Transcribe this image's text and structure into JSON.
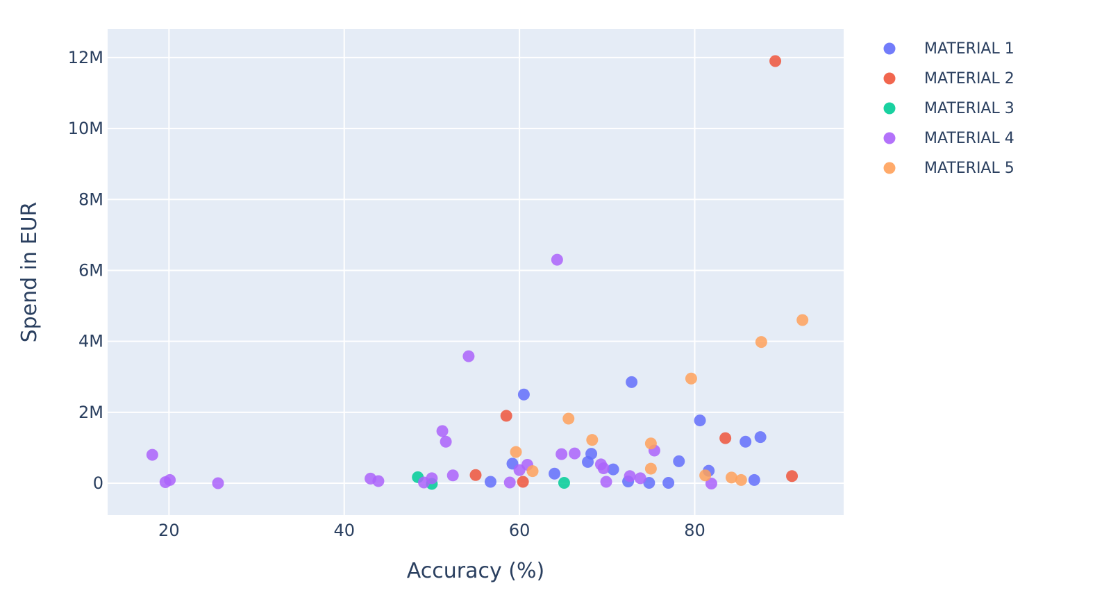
{
  "chart_data": {
    "type": "scatter",
    "xlabel": "Accuracy (%)",
    "ylabel": "Spend in EUR",
    "xlim": [
      13,
      97
    ],
    "ylim": [
      -900000,
      12800000
    ],
    "x_ticks": [
      20,
      40,
      60,
      80
    ],
    "x_tick_labels": [
      "20",
      "40",
      "60",
      "80"
    ],
    "y_ticks": [
      0,
      2000000,
      4000000,
      6000000,
      8000000,
      10000000,
      12000000
    ],
    "y_tick_labels": [
      "0",
      "2M",
      "4M",
      "6M",
      "8M",
      "10M",
      "12M"
    ],
    "grid": true,
    "legend_position": "right",
    "plot_background": "#e5ecf6",
    "series": [
      {
        "name": "MATERIAL 1",
        "color": "#636efa",
        "points": [
          [
            56.7,
            40000
          ],
          [
            59.2,
            550000
          ],
          [
            60.5,
            2500000
          ],
          [
            64.0,
            270000
          ],
          [
            67.8,
            600000
          ],
          [
            68.2,
            830000
          ],
          [
            70.7,
            390000
          ],
          [
            72.4,
            50000
          ],
          [
            72.8,
            2850000
          ],
          [
            74.8,
            10000
          ],
          [
            77.0,
            10000
          ],
          [
            78.2,
            620000
          ],
          [
            80.6,
            1770000
          ],
          [
            81.6,
            350000
          ],
          [
            85.8,
            1170000
          ],
          [
            86.8,
            90000
          ],
          [
            87.5,
            1300000
          ]
        ]
      },
      {
        "name": "MATERIAL 2",
        "color": "#ef553b",
        "points": [
          [
            55.0,
            230000
          ],
          [
            58.5,
            1900000
          ],
          [
            60.4,
            40000
          ],
          [
            83.5,
            1270000
          ],
          [
            89.2,
            11900000
          ],
          [
            91.1,
            200000
          ]
        ]
      },
      {
        "name": "MATERIAL 3",
        "color": "#00cc96",
        "points": [
          [
            48.4,
            170000
          ],
          [
            50.0,
            -20000
          ],
          [
            65.1,
            10000
          ]
        ]
      },
      {
        "name": "MATERIAL 4",
        "color": "#ab63fa",
        "points": [
          [
            18.1,
            800000
          ],
          [
            19.6,
            30000
          ],
          [
            20.1,
            90000
          ],
          [
            25.6,
            0
          ],
          [
            43.0,
            130000
          ],
          [
            43.9,
            60000
          ],
          [
            49.1,
            20000
          ],
          [
            50.0,
            140000
          ],
          [
            51.2,
            1470000
          ],
          [
            51.6,
            1170000
          ],
          [
            52.4,
            220000
          ],
          [
            54.2,
            3580000
          ],
          [
            58.9,
            20000
          ],
          [
            60.0,
            370000
          ],
          [
            60.9,
            520000
          ],
          [
            64.3,
            6300000
          ],
          [
            64.8,
            820000
          ],
          [
            66.3,
            840000
          ],
          [
            69.3,
            530000
          ],
          [
            69.6,
            420000
          ],
          [
            69.9,
            40000
          ],
          [
            72.6,
            200000
          ],
          [
            73.8,
            140000
          ],
          [
            75.4,
            920000
          ],
          [
            81.9,
            -10000
          ]
        ]
      },
      {
        "name": "MATERIAL 5",
        "color": "#ffa15a",
        "points": [
          [
            59.6,
            880000
          ],
          [
            61.5,
            340000
          ],
          [
            65.6,
            1820000
          ],
          [
            68.3,
            1220000
          ],
          [
            75.0,
            1120000
          ],
          [
            75.0,
            410000
          ],
          [
            79.6,
            2950000
          ],
          [
            81.2,
            220000
          ],
          [
            84.2,
            160000
          ],
          [
            85.3,
            90000
          ],
          [
            87.6,
            3980000
          ],
          [
            92.3,
            4600000
          ]
        ]
      }
    ]
  }
}
